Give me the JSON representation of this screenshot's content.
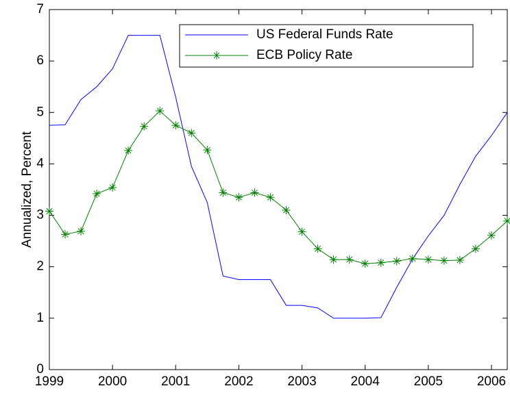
{
  "chart_data": {
    "type": "line",
    "y_label": "Annualized, Percent",
    "x": [
      1999,
      1999.25,
      1999.5,
      1999.75,
      2000,
      2000.25,
      2000.5,
      2000.75,
      2001,
      2001.25,
      2001.5,
      2001.75,
      2002,
      2002.25,
      2002.5,
      2002.75,
      2003,
      2003.25,
      2003.5,
      2003.75,
      2004,
      2004.25,
      2004.5,
      2004.75,
      2005,
      2005.25,
      2005.5,
      2005.75,
      2006,
      2006.25
    ],
    "series": [
      {
        "name": "US Federal Funds Rate",
        "color": "#0000ff",
        "marker": "none",
        "values": [
          4.75,
          4.76,
          5.25,
          5.5,
          5.85,
          6.5,
          6.5,
          6.5,
          5.3,
          3.95,
          3.25,
          1.82,
          1.75,
          1.75,
          1.75,
          1.25,
          1.25,
          1.2,
          1.0,
          1.0,
          1.0,
          1.01,
          1.6,
          2.15,
          2.6,
          3.0,
          3.6,
          4.15,
          4.55,
          5.0
        ]
      },
      {
        "name": "ECB Policy Rate",
        "color": "#008000",
        "marker": "asterisk",
        "values": [
          3.08,
          2.63,
          2.69,
          3.42,
          3.54,
          4.26,
          4.73,
          5.03,
          4.75,
          4.6,
          4.27,
          3.44,
          3.35,
          3.44,
          3.35,
          3.1,
          2.68,
          2.35,
          2.14,
          2.14,
          2.06,
          2.08,
          2.11,
          2.16,
          2.14,
          2.12,
          2.13,
          2.35,
          2.61,
          2.89
        ]
      }
    ],
    "xlim": [
      1999,
      2006.25
    ],
    "xticks": [
      1999,
      2000,
      2001,
      2002,
      2003,
      2004,
      2005,
      2006
    ],
    "ylim": [
      0,
      7
    ],
    "yticks": [
      0,
      1,
      2,
      3,
      4,
      5,
      6,
      7
    ],
    "grid": false,
    "legend": "top-right"
  }
}
